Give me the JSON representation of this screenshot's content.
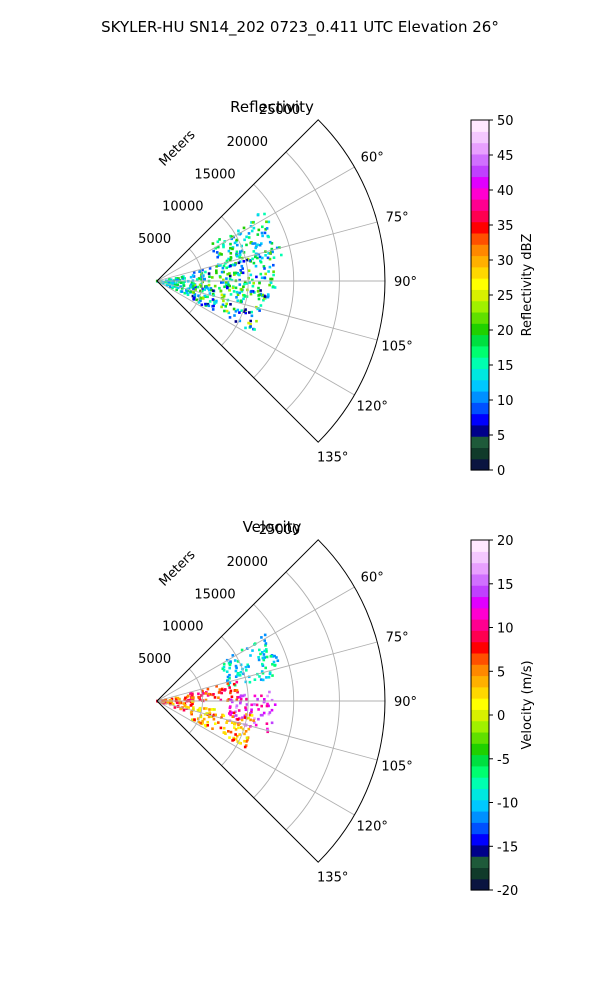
{
  "figure_title": "SKYLER-HU  SN14_202  0723_0.411 UTC Elevation 26°",
  "chart_data": [
    {
      "type": "heatmap",
      "projection": "polar-sector",
      "title": "Reflectivity",
      "range_label": "Meters",
      "range_ticks": [
        5000,
        10000,
        15000,
        20000,
        25000
      ],
      "range_max": 25000,
      "azimuth_ticks": [
        60,
        75,
        90,
        105,
        120,
        135
      ],
      "azimuth_tick_labels": [
        "60°",
        "75°",
        "90°",
        "105°",
        "120°",
        "135°"
      ],
      "azimuth_range": [
        45,
        135
      ],
      "grid": true,
      "colorbar": {
        "label": "Reflectivity dBZ",
        "min": 0,
        "max": 50,
        "ticks": [
          0,
          5,
          10,
          15,
          20,
          25,
          30,
          35,
          40,
          45,
          50
        ],
        "palette": [
          "#0a1440",
          "#103a2a",
          "#1e5a3a",
          "#00008a",
          "#0000ff",
          "#0050ff",
          "#0090ff",
          "#00c8ff",
          "#00e8e0",
          "#00ffb0",
          "#00ff70",
          "#00e040",
          "#20d000",
          "#60e000",
          "#a0f000",
          "#d8f000",
          "#ffff00",
          "#ffd800",
          "#ffb000",
          "#ff8800",
          "#ff5000",
          "#ff0000",
          "#ff0050",
          "#ff0090",
          "#ff00d0",
          "#e000ff",
          "#c040ff",
          "#d070ff",
          "#e8a0ff",
          "#f4c8ff",
          "#ffe8ff"
        ]
      },
      "echo_regions": [
        {
          "az": [
            56,
            79
          ],
          "range": [
            7000,
            14000
          ],
          "dbz": [
            8,
            22
          ]
        },
        {
          "az": [
            75,
            100
          ],
          "range": [
            4000,
            13000
          ],
          "dbz": [
            6,
            24
          ]
        },
        {
          "az": [
            95,
            118
          ],
          "range": [
            4000,
            12000
          ],
          "dbz": [
            5,
            25
          ]
        },
        {
          "az": [
            80,
            115
          ],
          "range": [
            0,
            4000
          ],
          "dbz": [
            10,
            20
          ]
        }
      ]
    },
    {
      "type": "heatmap",
      "projection": "polar-sector",
      "title": "Velocity",
      "range_label": "Meters",
      "range_ticks": [
        5000,
        10000,
        15000,
        20000,
        25000
      ],
      "range_max": 25000,
      "azimuth_ticks": [
        60,
        75,
        90,
        105,
        120,
        135
      ],
      "azimuth_tick_labels": [
        "60°",
        "75°",
        "90°",
        "105°",
        "120°",
        "135°"
      ],
      "azimuth_range": [
        45,
        135
      ],
      "grid": true,
      "colorbar": {
        "label": "Velocity (m/s)",
        "min": -20,
        "max": 20,
        "ticks": [
          -20,
          -15,
          -10,
          -5,
          0,
          5,
          10,
          15,
          20
        ],
        "palette": [
          "#0a1440",
          "#103a2a",
          "#1e5a3a",
          "#00008a",
          "#0000ff",
          "#0050ff",
          "#0090ff",
          "#00c8ff",
          "#00e8e0",
          "#00ffb0",
          "#00ff70",
          "#00e040",
          "#20d000",
          "#60e000",
          "#a0f000",
          "#d8f000",
          "#ffff00",
          "#ffd800",
          "#ffb000",
          "#ff8800",
          "#ff5000",
          "#ff0000",
          "#ff0050",
          "#ff0090",
          "#ff00d0",
          "#e000ff",
          "#c040ff",
          "#d070ff",
          "#e8a0ff",
          "#f4c8ff",
          "#ffe8ff"
        ]
      },
      "echo_regions": [
        {
          "az": [
            58,
            80
          ],
          "range": [
            8000,
            14000
          ],
          "vel": [
            -12,
            -6
          ]
        },
        {
          "az": [
            76,
            90
          ],
          "range": [
            3000,
            9000
          ],
          "vel": [
            5,
            11
          ]
        },
        {
          "az": [
            85,
            106
          ],
          "range": [
            8000,
            13000
          ],
          "vel": [
            10,
            17
          ]
        },
        {
          "az": [
            98,
            118
          ],
          "range": [
            4000,
            11000
          ],
          "vel": [
            0,
            8
          ]
        },
        {
          "az": [
            80,
            110
          ],
          "range": [
            0,
            4000
          ],
          "vel": [
            2,
            10
          ]
        }
      ]
    }
  ]
}
